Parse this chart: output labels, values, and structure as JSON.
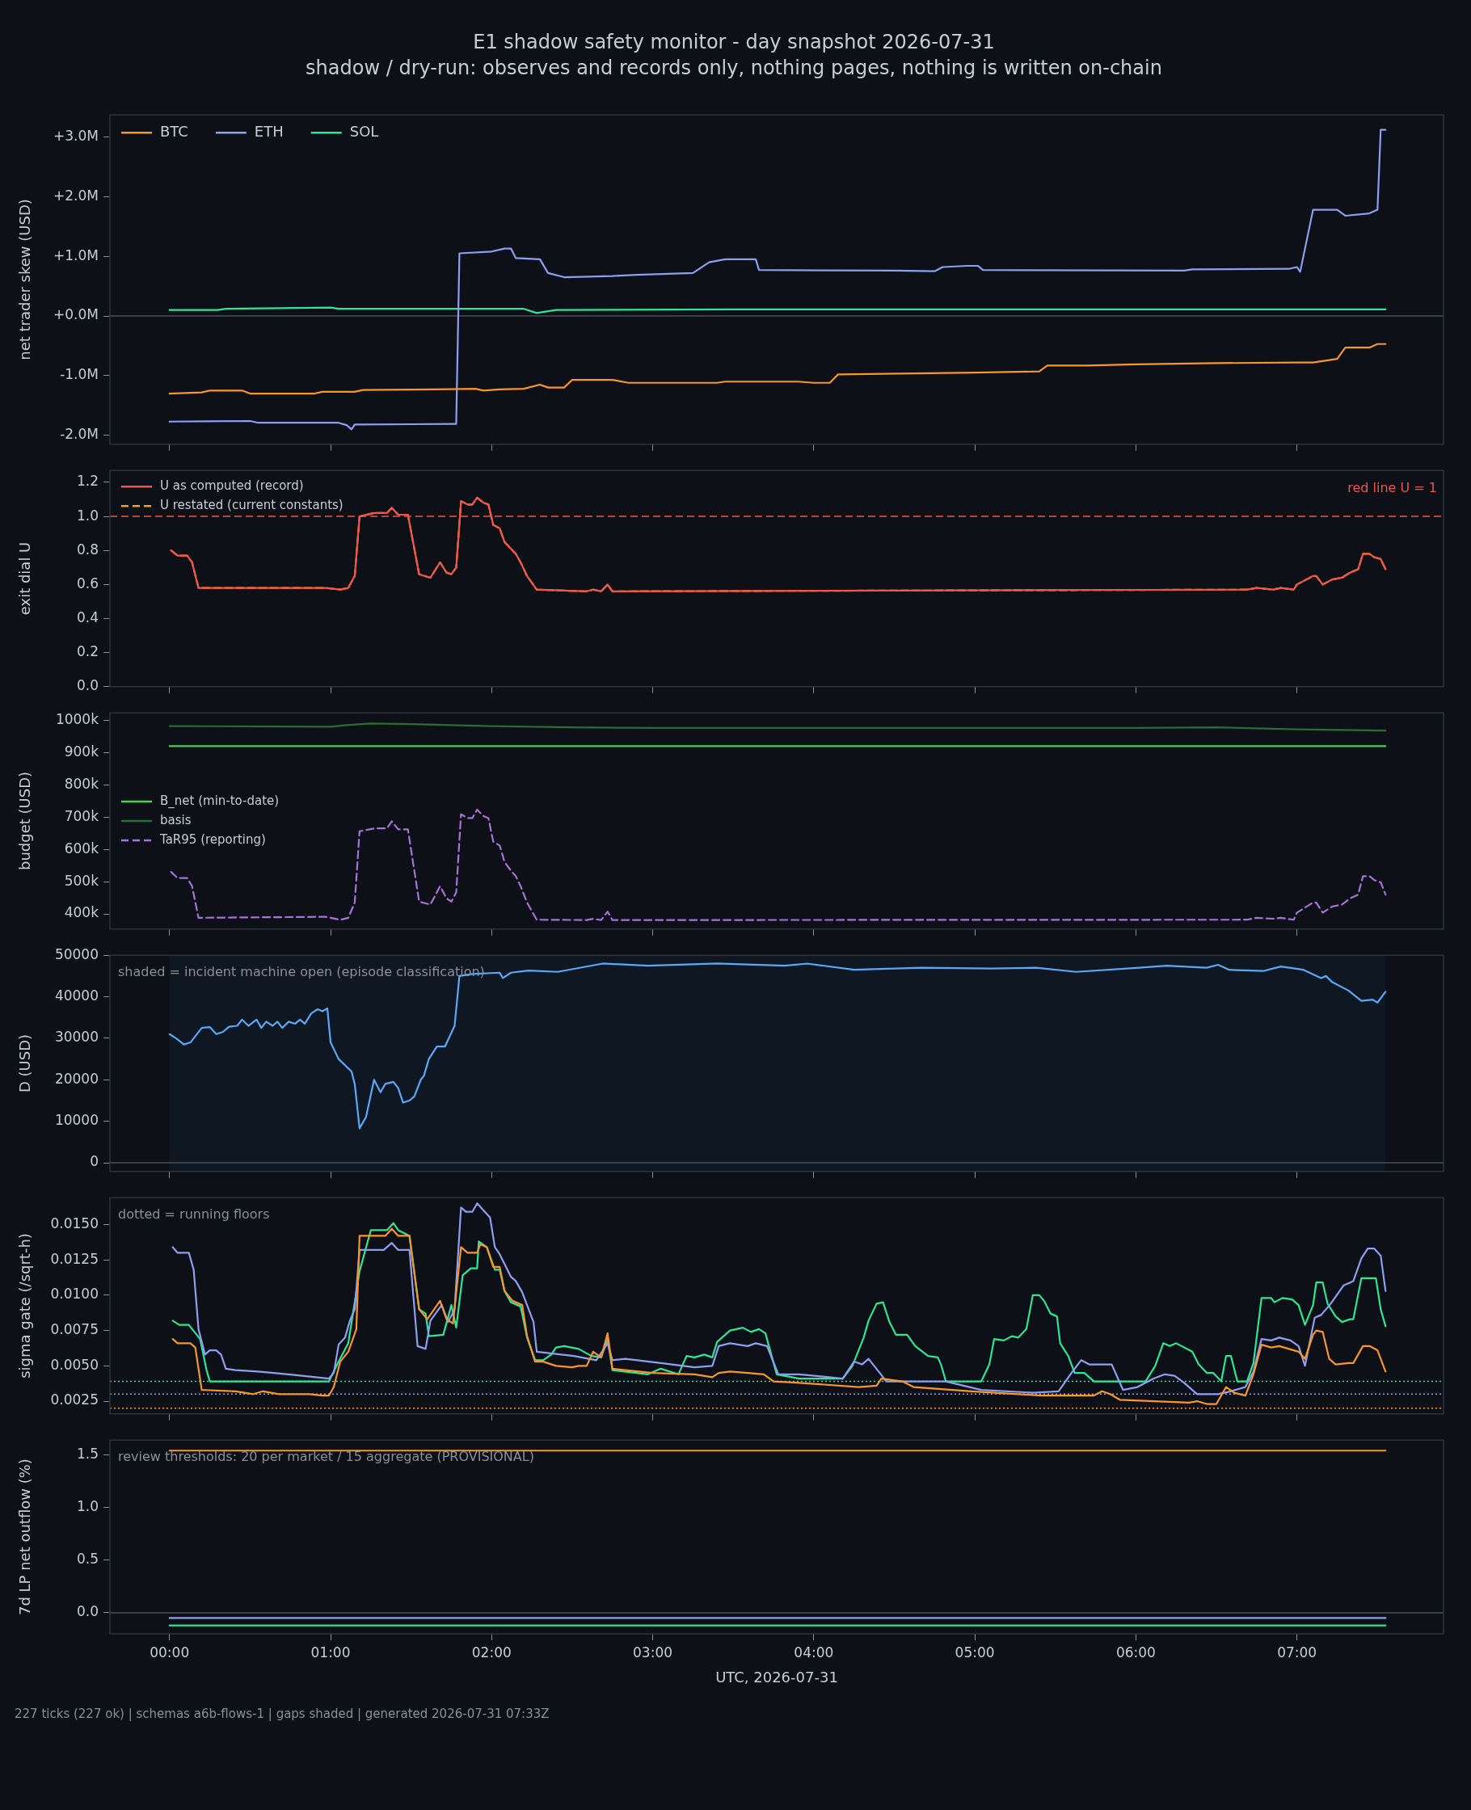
{
  "chart_data": [
    {
      "type": "line",
      "title": "E1 shadow safety monitor - day snapshot 2026-07-31",
      "subtitle": "shadow / dry-run: observes and records only, nothing pages, nothing is written on-chain",
      "ylabel": "net trader skew (USD)",
      "xlim": [
        -0.37,
        7.91
      ],
      "xticks": [
        {
          "value": 0,
          "label": null
        },
        {
          "value": 1,
          "label": null
        },
        {
          "value": 2,
          "label": null
        },
        {
          "value": 3,
          "label": null
        },
        {
          "value": 4,
          "label": null
        },
        {
          "value": 5,
          "label": null
        },
        {
          "value": 6,
          "label": null
        },
        {
          "value": 7,
          "label": null
        }
      ],
      "ylim": [
        -2.15,
        3.37
      ],
      "yticks": [
        {
          "value": -2,
          "label": "-2.0M"
        },
        {
          "value": -1,
          "label": "-1.0M"
        },
        {
          "value": 0,
          "label": "+0.0M"
        },
        {
          "value": 1,
          "label": "+1.0M"
        },
        {
          "value": 2,
          "label": "+2.0M"
        },
        {
          "value": 3,
          "label": "+3.0M"
        }
      ],
      "tick_labels": "y",
      "legend": "top left",
      "ref_lines": [
        {
          "axis": "y",
          "value": 0,
          "color": "#4a4f58"
        }
      ],
      "series": [
        {
          "name": "BTC",
          "color": "#f7962f",
          "x": [
            0,
            0.2,
            0.25,
            0.45,
            0.5,
            0.9,
            0.95,
            1.15,
            1.2,
            1.65,
            1.9,
            1.95,
            2.05,
            2.2,
            2.3,
            2.35,
            2.45,
            2.5,
            2.75,
            2.85,
            3.4,
            3.45,
            3.9,
            4.0,
            4.1,
            4.15,
            5.0,
            5.4,
            5.45,
            5.7,
            6.0,
            6.5,
            7.0,
            7.1,
            7.25,
            7.3,
            7.45,
            7.5,
            7.55
          ],
          "values": [
            -1.3,
            -1.28,
            -1.25,
            -1.25,
            -1.3,
            -1.3,
            -1.27,
            -1.27,
            -1.24,
            -1.23,
            -1.22,
            -1.25,
            -1.23,
            -1.22,
            -1.15,
            -1.2,
            -1.2,
            -1.07,
            -1.07,
            -1.12,
            -1.12,
            -1.1,
            -1.1,
            -1.12,
            -1.12,
            -0.98,
            -0.95,
            -0.93,
            -0.83,
            -0.83,
            -0.81,
            -0.79,
            -0.78,
            -0.78,
            -0.72,
            -0.53,
            -0.53,
            -0.47,
            -0.47
          ]
        },
        {
          "name": "ETH",
          "color": "#8f9ff0",
          "x": [
            0,
            0.5,
            0.55,
            1.05,
            1.1,
            1.13,
            1.15,
            1.75,
            1.78,
            1.8,
            2.0,
            2.08,
            2.12,
            2.15,
            2.3,
            2.35,
            2.45,
            2.75,
            2.9,
            3.25,
            3.35,
            3.45,
            3.64,
            3.66,
            4.5,
            4.75,
            4.8,
            4.95,
            5.02,
            5.05,
            6.3,
            6.35,
            6.95,
            7.0,
            7.02,
            7.1,
            7.25,
            7.3,
            7.45,
            7.5,
            7.52,
            7.55
          ],
          "values": [
            -1.77,
            -1.76,
            -1.79,
            -1.79,
            -1.83,
            -1.9,
            -1.82,
            -1.81,
            -1.81,
            1.05,
            1.08,
            1.13,
            1.13,
            0.97,
            0.95,
            0.72,
            0.65,
            0.67,
            0.69,
            0.72,
            0.9,
            0.95,
            0.95,
            0.77,
            0.76,
            0.75,
            0.82,
            0.84,
            0.84,
            0.77,
            0.76,
            0.78,
            0.79,
            0.82,
            0.74,
            1.78,
            1.78,
            1.68,
            1.72,
            1.78,
            3.12,
            3.12
          ]
        },
        {
          "name": "SOL",
          "color": "#2ee59a",
          "x": [
            0,
            0.3,
            0.35,
            1.0,
            1.05,
            1.1,
            2.2,
            2.28,
            2.4,
            3.5,
            4.0,
            7.55
          ],
          "values": [
            0.1,
            0.1,
            0.12,
            0.14,
            0.12,
            0.12,
            0.12,
            0.05,
            0.1,
            0.11,
            0.11,
            0.11
          ]
        }
      ]
    },
    {
      "type": "line",
      "ylabel": "exit dial U",
      "xlim": [
        -0.37,
        7.91
      ],
      "xticks": [
        {
          "value": 0,
          "label": null
        },
        {
          "value": 1,
          "label": null
        },
        {
          "value": 2,
          "label": null
        },
        {
          "value": 3,
          "label": null
        },
        {
          "value": 4,
          "label": null
        },
        {
          "value": 5,
          "label": null
        },
        {
          "value": 6,
          "label": null
        },
        {
          "value": 7,
          "label": null
        }
      ],
      "ylim": [
        0,
        1.27
      ],
      "yticks": [
        {
          "value": 0,
          "label": "0.0"
        },
        {
          "value": 0.2,
          "label": "0.2"
        },
        {
          "value": 0.4,
          "label": "0.4"
        },
        {
          "value": 0.6,
          "label": "0.6"
        },
        {
          "value": 0.8,
          "label": "0.8"
        },
        {
          "value": 1,
          "label": "1.0"
        },
        {
          "value": 1.2,
          "label": "1.2"
        }
      ],
      "tick_labels": "y",
      "legend": "top left",
      "ref_lines": [
        {
          "axis": "y",
          "value": 1,
          "label": "red line U = 1",
          "color": "#f2554a",
          "line_style": "dashed"
        }
      ],
      "series": [
        {
          "name": "U as computed (record)",
          "color": "#f2554a",
          "x": [
            0.01,
            0.05,
            0.11,
            0.14,
            0.18,
            0.97,
            1.06,
            1.11,
            1.15,
            1.18,
            1.27,
            1.35,
            1.38,
            1.42,
            1.48,
            1.55,
            1.62,
            1.68,
            1.72,
            1.75,
            1.78,
            1.81,
            1.85,
            1.88,
            1.91,
            1.95,
            1.98,
            2.01,
            2.05,
            2.08,
            2.12,
            2.15,
            2.18,
            2.22,
            2.28,
            2.59,
            2.63,
            2.68,
            2.72,
            2.75,
            6.69,
            6.75,
            6.85,
            6.9,
            6.98,
            7.0,
            7.1,
            7.12,
            7.16,
            7.22,
            7.28,
            7.33,
            7.38,
            7.41,
            7.45,
            7.48,
            7.52,
            7.55
          ],
          "values": [
            0.8,
            0.77,
            0.77,
            0.73,
            0.58,
            0.58,
            0.57,
            0.58,
            0.65,
            1.0,
            1.02,
            1.02,
            1.05,
            1.01,
            1.01,
            0.66,
            0.64,
            0.73,
            0.67,
            0.66,
            0.7,
            1.09,
            1.07,
            1.07,
            1.11,
            1.08,
            1.07,
            0.95,
            0.93,
            0.85,
            0.81,
            0.78,
            0.73,
            0.65,
            0.57,
            0.56,
            0.57,
            0.56,
            0.6,
            0.56,
            0.57,
            0.58,
            0.57,
            0.58,
            0.57,
            0.6,
            0.65,
            0.65,
            0.6,
            0.63,
            0.64,
            0.67,
            0.69,
            0.78,
            0.78,
            0.76,
            0.75,
            0.69
          ]
        },
        {
          "name": "U restated (current constants)",
          "color": "#e8a32a",
          "line_style": "dashed",
          "x": [
            0.01,
            0.05,
            0.11,
            0.14,
            0.18,
            0.97,
            1.06,
            1.11,
            1.15,
            1.18,
            1.27,
            1.35,
            1.38,
            1.42,
            1.48,
            1.55,
            1.62,
            1.68,
            1.72,
            1.75,
            1.78,
            1.81,
            1.85,
            1.88,
            1.91,
            1.95,
            1.98,
            2.01,
            2.05,
            2.08,
            2.12,
            2.15,
            2.18,
            2.22,
            2.28,
            2.59,
            2.63,
            2.68,
            2.72,
            2.75,
            6.69,
            6.75,
            6.85,
            6.9,
            6.98,
            7.0,
            7.1,
            7.12,
            7.16,
            7.22,
            7.28,
            7.33,
            7.38,
            7.41,
            7.45,
            7.48,
            7.52,
            7.55
          ],
          "values": [
            0.8,
            0.77,
            0.77,
            0.73,
            0.58,
            0.58,
            0.57,
            0.58,
            0.65,
            1.0,
            1.02,
            1.02,
            1.05,
            1.01,
            1.01,
            0.66,
            0.64,
            0.73,
            0.67,
            0.66,
            0.7,
            1.09,
            1.07,
            1.07,
            1.11,
            1.08,
            1.07,
            0.95,
            0.93,
            0.85,
            0.81,
            0.78,
            0.73,
            0.65,
            0.57,
            0.56,
            0.57,
            0.56,
            0.6,
            0.56,
            0.57,
            0.58,
            0.57,
            0.58,
            0.57,
            0.6,
            0.65,
            0.65,
            0.6,
            0.63,
            0.64,
            0.67,
            0.69,
            0.78,
            0.78,
            0.76,
            0.75,
            0.69
          ]
        }
      ]
    },
    {
      "type": "line",
      "ylabel": "budget (USD)",
      "xlim": [
        -0.37,
        7.91
      ],
      "xticks": [
        {
          "value": 0,
          "label": null
        },
        {
          "value": 1,
          "label": null
        },
        {
          "value": 2,
          "label": null
        },
        {
          "value": 3,
          "label": null
        },
        {
          "value": 4,
          "label": null
        },
        {
          "value": 5,
          "label": null
        },
        {
          "value": 6,
          "label": null
        },
        {
          "value": 7,
          "label": null
        }
      ],
      "ylim": [
        353,
        1023
      ],
      "yticks": [
        {
          "value": 400,
          "label": "400k"
        },
        {
          "value": 500,
          "label": "500k"
        },
        {
          "value": 600,
          "label": "600k"
        },
        {
          "value": 700,
          "label": "700k"
        },
        {
          "value": 800,
          "label": "800k"
        },
        {
          "value": 900,
          "label": "900k"
        },
        {
          "value": 1000,
          "label": "1000k"
        }
      ],
      "tick_labels": "y",
      "legend": "left",
      "series": [
        {
          "name": "B_net (min-to-date)",
          "color": "#4fce55",
          "x": [
            0,
            7.55
          ],
          "values": [
            920,
            920
          ]
        },
        {
          "name": "basis",
          "color": "#2a6e34",
          "x": [
            0,
            1.0,
            1.1,
            1.25,
            1.5,
            2.0,
            2.5,
            3.0,
            4.0,
            5.0,
            6.0,
            6.5,
            7.0,
            7.55
          ],
          "values": [
            982,
            980,
            985,
            990,
            988,
            982,
            978,
            976,
            976,
            976,
            976,
            978,
            972,
            968
          ]
        },
        {
          "name": "TaR95 (reporting)",
          "color": "#a673d9",
          "line_style": "dashed",
          "x": [
            0.01,
            0.05,
            0.11,
            0.14,
            0.18,
            0.97,
            1.06,
            1.11,
            1.15,
            1.18,
            1.27,
            1.35,
            1.38,
            1.42,
            1.48,
            1.55,
            1.62,
            1.68,
            1.72,
            1.75,
            1.78,
            1.81,
            1.85,
            1.88,
            1.91,
            1.95,
            1.98,
            2.01,
            2.05,
            2.08,
            2.12,
            2.15,
            2.18,
            2.22,
            2.28,
            2.59,
            2.63,
            2.68,
            2.72,
            2.75,
            6.69,
            6.75,
            6.85,
            6.9,
            6.98,
            7.0,
            7.1,
            7.12,
            7.16,
            7.22,
            7.28,
            7.33,
            7.38,
            7.41,
            7.45,
            7.48,
            7.52,
            7.55
          ],
          "values": [
            530,
            511,
            511,
            486,
            388,
            391,
            382,
            388,
            435,
            656,
            665,
            665,
            687,
            662,
            662,
            438,
            429,
            486,
            448,
            438,
            467,
            709,
            697,
            697,
            723,
            703,
            697,
            624,
            612,
            561,
            534,
            517,
            486,
            435,
            382,
            381,
            385,
            381,
            407,
            381,
            382,
            388,
            385,
            388,
            382,
            404,
            435,
            435,
            404,
            423,
            429,
            448,
            460,
            517,
            517,
            505,
            498,
            460
          ]
        }
      ]
    },
    {
      "type": "line",
      "ylabel": "D (USD)",
      "xlim": [
        -0.37,
        7.91
      ],
      "xticks": [
        {
          "value": 0,
          "label": null
        },
        {
          "value": 1,
          "label": null
        },
        {
          "value": 2,
          "label": null
        },
        {
          "value": 3,
          "label": null
        },
        {
          "value": 4,
          "label": null
        },
        {
          "value": 5,
          "label": null
        },
        {
          "value": 6,
          "label": null
        },
        {
          "value": 7,
          "label": null
        }
      ],
      "ylim": [
        -2100,
        50000
      ],
      "yticks": [
        0,
        10000,
        20000,
        30000,
        40000,
        50000
      ],
      "tick_labels": "y",
      "ref_lines": [
        {
          "axis": "y",
          "value": 0,
          "color": "#4a4f58"
        }
      ],
      "bands": [
        {
          "axis": "x",
          "from": 0,
          "to": 7.55,
          "label": "shaded = incident machine open (episode classification)",
          "color": "#0f1822"
        }
      ],
      "series": [
        {
          "color": "#5ba8f7",
          "x": [
            0,
            0.04,
            0.09,
            0.13,
            0.2,
            0.25,
            0.29,
            0.33,
            0.37,
            0.42,
            0.45,
            0.49,
            0.54,
            0.57,
            0.6,
            0.64,
            0.67,
            0.7,
            0.74,
            0.78,
            0.81,
            0.84,
            0.88,
            0.92,
            0.95,
            0.98,
            1.0,
            1.05,
            1.13,
            1.15,
            1.18,
            1.22,
            1.27,
            1.31,
            1.34,
            1.39,
            1.42,
            1.45,
            1.49,
            1.52,
            1.56,
            1.58,
            1.61,
            1.66,
            1.71,
            1.77,
            1.8,
            1.88,
            2.05,
            2.07,
            2.12,
            2.23,
            2.41,
            2.69,
            2.97,
            3.4,
            3.82,
            3.96,
            4.25,
            4.67,
            5.1,
            5.38,
            5.63,
            6.02,
            6.19,
            6.44,
            6.51,
            6.58,
            6.79,
            6.9,
            7.04,
            7.15,
            7.18,
            7.22,
            7.32,
            7.4,
            7.47,
            7.5,
            7.55
          ],
          "values": [
            31000,
            30000,
            28500,
            29000,
            32500,
            32700,
            31000,
            31500,
            32800,
            33000,
            34500,
            33000,
            34500,
            32500,
            34000,
            33000,
            34000,
            32500,
            34000,
            33500,
            34500,
            33500,
            36000,
            37000,
            36500,
            37200,
            29000,
            25000,
            22000,
            19000,
            8300,
            11000,
            20000,
            17000,
            19000,
            19500,
            18000,
            14500,
            15000,
            16000,
            20000,
            21000,
            25000,
            28000,
            28000,
            33000,
            45000,
            45500,
            45800,
            44500,
            45800,
            46300,
            46000,
            48000,
            47500,
            48000,
            47500,
            48000,
            46500,
            47000,
            46800,
            47000,
            46000,
            47000,
            47500,
            47000,
            47700,
            46500,
            46200,
            47300,
            46500,
            44500,
            45000,
            43500,
            41500,
            39000,
            39300,
            38600,
            41200
          ]
        }
      ]
    },
    {
      "type": "line",
      "ylabel": "sigma gate (/sqrt-h)",
      "xlim": [
        -0.37,
        7.91
      ],
      "xticks": [
        {
          "value": 0,
          "label": null
        },
        {
          "value": 1,
          "label": null
        },
        {
          "value": 2,
          "label": null
        },
        {
          "value": 3,
          "label": null
        },
        {
          "value": 4,
          "label": null
        },
        {
          "value": 5,
          "label": null
        },
        {
          "value": 6,
          "label": null
        },
        {
          "value": 7,
          "label": null
        }
      ],
      "ylim": [
        0.0016,
        0.0169
      ],
      "yticks": [
        {
          "value": 0.0025,
          "label": "0.0025"
        },
        {
          "value": 0.005,
          "label": "0.0050"
        },
        {
          "value": 0.0075,
          "label": "0.0075"
        },
        {
          "value": 0.01,
          "label": "0.0100"
        },
        {
          "value": 0.0125,
          "label": "0.0125"
        },
        {
          "value": 0.015,
          "label": "0.0150"
        }
      ],
      "tick_labels": "y",
      "annotations": [
        "dotted = running floors"
      ],
      "ref_lines": [
        {
          "axis": "y",
          "value": 0.0039,
          "color": "#2ee59a",
          "line_style": "dotted"
        },
        {
          "axis": "y",
          "value": 0.003,
          "color": "#8f9ff0",
          "line_style": "dotted"
        },
        {
          "axis": "y",
          "value": 0.002,
          "color": "#f7962f",
          "line_style": "dotted"
        }
      ],
      "series": [
        {
          "color": "#f7962f",
          "x": [
            0.02,
            0.05,
            0.13,
            0.16,
            0.2,
            0.41,
            0.52,
            0.58,
            0.68,
            0.87,
            0.95,
            0.99,
            1.02,
            1.06,
            1.11,
            1.16,
            1.18,
            1.34,
            1.38,
            1.42,
            1.49,
            1.55,
            1.6,
            1.68,
            1.72,
            1.76,
            1.81,
            1.85,
            1.91,
            1.93,
            1.97,
            2.01,
            2.05,
            2.08,
            2.13,
            2.19,
            2.22,
            2.27,
            2.32,
            2.4,
            2.5,
            2.54,
            2.59,
            2.63,
            2.68,
            2.72,
            2.75,
            2.83,
            3.0,
            3.26,
            3.37,
            3.41,
            3.48,
            3.59,
            3.69,
            3.75,
            3.91,
            4.28,
            4.39,
            4.42,
            4.55,
            4.62,
            4.98,
            5.41,
            5.74,
            5.79,
            5.84,
            5.9,
            6.33,
            6.38,
            6.44,
            6.5,
            6.56,
            6.61,
            6.68,
            6.73,
            6.78,
            6.84,
            6.89,
            7.01,
            7.05,
            7.1,
            7.12,
            7.16,
            7.2,
            7.24,
            7.32,
            7.35,
            7.41,
            7.45,
            7.5,
            7.55
          ],
          "values": [
            0.0069,
            0.0066,
            0.0066,
            0.0063,
            0.0033,
            0.0032,
            0.003,
            0.0032,
            0.003,
            0.003,
            0.0029,
            0.0029,
            0.0035,
            0.0053,
            0.006,
            0.0076,
            0.0142,
            0.0142,
            0.0147,
            0.0142,
            0.0142,
            0.009,
            0.0083,
            0.0096,
            0.0083,
            0.008,
            0.0134,
            0.013,
            0.013,
            0.0136,
            0.0134,
            0.012,
            0.012,
            0.0103,
            0.0096,
            0.0093,
            0.0071,
            0.0053,
            0.0053,
            0.005,
            0.0049,
            0.005,
            0.005,
            0.006,
            0.0056,
            0.0073,
            0.0048,
            0.0047,
            0.0045,
            0.0044,
            0.0042,
            0.0045,
            0.0046,
            0.0045,
            0.0044,
            0.0039,
            0.0038,
            0.0035,
            0.0036,
            0.0041,
            0.0039,
            0.0035,
            0.0032,
            0.0029,
            0.0029,
            0.0032,
            0.003,
            0.0026,
            0.0024,
            0.0025,
            0.0023,
            0.0023,
            0.0035,
            0.0031,
            0.0029,
            0.0044,
            0.0065,
            0.0063,
            0.0064,
            0.006,
            0.0055,
            0.0072,
            0.0075,
            0.0074,
            0.0055,
            0.0051,
            0.0052,
            0.0052,
            0.0064,
            0.0064,
            0.0061,
            0.0046
          ]
        },
        {
          "color": "#8f9ff0",
          "x": [
            0.02,
            0.05,
            0.12,
            0.15,
            0.18,
            0.22,
            0.25,
            0.29,
            0.32,
            0.35,
            0.41,
            0.55,
            0.74,
            0.99,
            1.02,
            1.05,
            1.09,
            1.12,
            1.15,
            1.18,
            1.33,
            1.38,
            1.42,
            1.49,
            1.54,
            1.59,
            1.62,
            1.69,
            1.73,
            1.77,
            1.81,
            1.84,
            1.88,
            1.91,
            1.99,
            2.02,
            2.05,
            2.12,
            2.15,
            2.19,
            2.23,
            2.26,
            2.28,
            2.51,
            2.65,
            2.72,
            2.75,
            2.83,
            3.05,
            3.26,
            3.37,
            3.41,
            3.48,
            3.59,
            3.64,
            3.71,
            3.78,
            3.91,
            4.18,
            4.25,
            4.3,
            4.34,
            4.41,
            4.45,
            4.82,
            5.04,
            5.36,
            5.52,
            5.6,
            5.66,
            5.71,
            5.85,
            5.92,
            6.01,
            6.11,
            6.18,
            6.24,
            6.3,
            6.38,
            6.51,
            6.59,
            6.68,
            6.73,
            6.78,
            6.84,
            6.89,
            6.96,
            7.01,
            7.05,
            7.11,
            7.15,
            7.21,
            7.29,
            7.35,
            7.4,
            7.44,
            7.48,
            7.52,
            7.55
          ],
          "values": [
            0.0134,
            0.013,
            0.013,
            0.0118,
            0.0076,
            0.0058,
            0.0061,
            0.0061,
            0.0058,
            0.0048,
            0.0047,
            0.0046,
            0.0044,
            0.0041,
            0.0045,
            0.0065,
            0.007,
            0.0082,
            0.009,
            0.0132,
            0.0132,
            0.0137,
            0.0132,
            0.0132,
            0.0064,
            0.0062,
            0.0082,
            0.0093,
            0.0081,
            0.009,
            0.0162,
            0.0159,
            0.0159,
            0.0165,
            0.0155,
            0.0134,
            0.0129,
            0.0113,
            0.011,
            0.0102,
            0.009,
            0.0081,
            0.006,
            0.0057,
            0.0054,
            0.0066,
            0.0054,
            0.0055,
            0.0052,
            0.0049,
            0.005,
            0.0064,
            0.0066,
            0.0064,
            0.0066,
            0.0064,
            0.0044,
            0.0044,
            0.0041,
            0.0053,
            0.0051,
            0.0055,
            0.0045,
            0.0039,
            0.0039,
            0.0033,
            0.0031,
            0.0032,
            0.0045,
            0.0054,
            0.0051,
            0.0051,
            0.0033,
            0.0035,
            0.0041,
            0.0044,
            0.0043,
            0.0038,
            0.003,
            0.003,
            0.0032,
            0.0035,
            0.0046,
            0.0069,
            0.0068,
            0.007,
            0.0068,
            0.0064,
            0.005,
            0.0084,
            0.0086,
            0.0094,
            0.0107,
            0.011,
            0.0126,
            0.0133,
            0.0133,
            0.0128,
            0.0103
          ]
        },
        {
          "color": "#2ee59a",
          "x": [
            0.02,
            0.06,
            0.12,
            0.19,
            0.23,
            0.25,
            0.99,
            1.05,
            1.11,
            1.18,
            1.25,
            1.35,
            1.39,
            1.42,
            1.49,
            1.55,
            1.59,
            1.61,
            1.7,
            1.75,
            1.78,
            1.82,
            1.87,
            1.91,
            1.92,
            1.97,
            2.02,
            2.05,
            2.08,
            2.12,
            2.18,
            2.22,
            2.27,
            2.32,
            2.37,
            2.4,
            2.45,
            2.54,
            2.62,
            2.68,
            2.72,
            2.75,
            2.97,
            3.05,
            3.16,
            3.21,
            3.26,
            3.32,
            3.37,
            3.4,
            3.48,
            3.56,
            3.61,
            3.66,
            3.7,
            3.77,
            3.91,
            4.18,
            4.24,
            4.31,
            4.34,
            4.39,
            4.43,
            4.47,
            4.51,
            4.58,
            4.63,
            4.71,
            4.77,
            4.79,
            4.82,
            5.04,
            5.09,
            5.12,
            5.18,
            5.23,
            5.27,
            5.32,
            5.36,
            5.4,
            5.43,
            5.47,
            5.51,
            5.53,
            5.58,
            5.62,
            5.68,
            5.74,
            6.06,
            6.12,
            6.17,
            6.21,
            6.25,
            6.35,
            6.39,
            6.44,
            6.48,
            6.53,
            6.56,
            6.59,
            6.63,
            6.69,
            6.73,
            6.78,
            6.84,
            6.86,
            6.91,
            6.97,
            7.01,
            7.05,
            7.1,
            7.12,
            7.16,
            7.19,
            7.24,
            7.28,
            7.33,
            7.35,
            7.4,
            7.49,
            7.52,
            7.55
          ],
          "values": [
            0.0082,
            0.0079,
            0.0079,
            0.0069,
            0.0047,
            0.0039,
            0.0039,
            0.0053,
            0.0066,
            0.0117,
            0.0146,
            0.0146,
            0.0151,
            0.0146,
            0.0142,
            0.009,
            0.0087,
            0.0071,
            0.0072,
            0.0093,
            0.0077,
            0.0114,
            0.0119,
            0.0119,
            0.0138,
            0.0134,
            0.0118,
            0.0118,
            0.0103,
            0.0095,
            0.0092,
            0.007,
            0.0054,
            0.0054,
            0.0058,
            0.0063,
            0.0064,
            0.0062,
            0.0057,
            0.0056,
            0.0069,
            0.0047,
            0.0044,
            0.0048,
            0.0044,
            0.0057,
            0.0056,
            0.0058,
            0.0056,
            0.0067,
            0.0075,
            0.0077,
            0.0074,
            0.0076,
            0.0073,
            0.0044,
            0.0041,
            0.0041,
            0.005,
            0.007,
            0.0082,
            0.0094,
            0.0095,
            0.0081,
            0.0072,
            0.0072,
            0.0064,
            0.0057,
            0.0056,
            0.0051,
            0.0039,
            0.0039,
            0.0051,
            0.0069,
            0.0068,
            0.0071,
            0.007,
            0.0076,
            0.01,
            0.01,
            0.0096,
            0.0087,
            0.0085,
            0.0066,
            0.0057,
            0.0045,
            0.0045,
            0.0039,
            0.0039,
            0.005,
            0.0066,
            0.0064,
            0.0066,
            0.006,
            0.0051,
            0.0045,
            0.0045,
            0.0039,
            0.0057,
            0.0057,
            0.0039,
            0.0039,
            0.0052,
            0.0098,
            0.0098,
            0.0095,
            0.0098,
            0.0097,
            0.0093,
            0.0079,
            0.0093,
            0.0109,
            0.0109,
            0.0094,
            0.0085,
            0.0081,
            0.0083,
            0.0083,
            0.0112,
            0.0112,
            0.009,
            0.0078
          ]
        }
      ]
    },
    {
      "type": "line",
      "ylabel": "7d LP net outflow (%)",
      "xlabel": "UTC, 2026-07-31",
      "xlim": [
        -0.37,
        7.91
      ],
      "xticks": [
        {
          "value": 0,
          "label": "00:00"
        },
        {
          "value": 1,
          "label": "01:00"
        },
        {
          "value": 2,
          "label": "02:00"
        },
        {
          "value": 3,
          "label": "03:00"
        },
        {
          "value": 4,
          "label": "04:00"
        },
        {
          "value": 5,
          "label": "05:00"
        },
        {
          "value": 6,
          "label": "06:00"
        },
        {
          "value": 7,
          "label": "07:00"
        }
      ],
      "ylim": [
        -0.2,
        1.64
      ],
      "yticks": [
        {
          "value": 0,
          "label": "0.0"
        },
        {
          "value": 0.5,
          "label": "0.5"
        },
        {
          "value": 1,
          "label": "1.0"
        },
        {
          "value": 1.5,
          "label": "1.5"
        }
      ],
      "annotations": [
        "review thresholds: 20 per market / 15 aggregate (PROVISIONAL)",
        "227 ticks (227 ok) | schemas a6b-flows-1 | gaps shaded | generated 2026-07-31 07:33Z"
      ],
      "ref_lines": [
        {
          "axis": "y",
          "value": 0,
          "color": "#4a4f58"
        }
      ],
      "series": [
        {
          "color": "#f7962f",
          "x": [
            0,
            7.55
          ],
          "values": [
            1.54,
            1.54
          ]
        },
        {
          "color": "#8f9ff0",
          "x": [
            0,
            7.55
          ],
          "values": [
            -0.05,
            -0.05
          ]
        },
        {
          "color": "#2ee59a",
          "x": [
            0,
            7.55
          ],
          "values": [
            -0.12,
            -0.12
          ]
        }
      ]
    }
  ]
}
